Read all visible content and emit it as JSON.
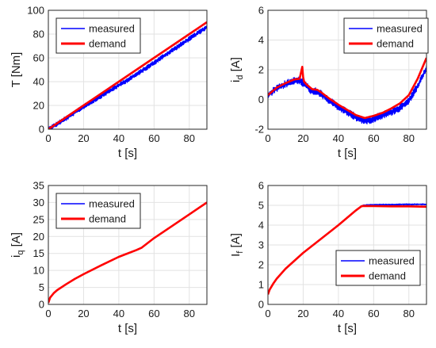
{
  "chart_data": [
    {
      "type": "line",
      "xlabel": "t [s]",
      "ylabel": "T [Nm]",
      "ylabel_sub": "",
      "xlim": [
        0,
        90
      ],
      "ylim": [
        0,
        100
      ],
      "xticks": [
        "0",
        "20",
        "40",
        "60",
        "80"
      ],
      "yticks": [
        "0",
        "20",
        "40",
        "60",
        "80",
        "100"
      ],
      "grid": true,
      "legend_position": "top-left",
      "series": [
        {
          "name": "measured",
          "color": "#0000ff",
          "noise": 2.0,
          "x": [
            0,
            10,
            20,
            30,
            40,
            50,
            60,
            70,
            80,
            90
          ],
          "y": [
            0,
            9,
            19,
            28,
            37,
            46,
            56,
            66,
            76,
            86
          ]
        },
        {
          "name": "demand",
          "color": "#ff0000",
          "noise": 0,
          "x": [
            0,
            10,
            20,
            30,
            40,
            50,
            60,
            70,
            80,
            90
          ],
          "y": [
            0,
            10,
            20,
            30,
            40,
            50,
            60,
            70,
            80,
            90
          ]
        }
      ]
    },
    {
      "type": "line",
      "xlabel": "t [s]",
      "ylabel": "i",
      "ylabel_sub": "d",
      "ylabel_unit": " [A]",
      "xlim": [
        0,
        90
      ],
      "ylim": [
        -2,
        6
      ],
      "xticks": [
        "0",
        "20",
        "40",
        "60",
        "80"
      ],
      "yticks": [
        "-2",
        "0",
        "2",
        "4",
        "6"
      ],
      "grid": true,
      "legend_position": "top-right",
      "series": [
        {
          "name": "measured",
          "color": "#0000ff",
          "noise": 0.25,
          "x": [
            0,
            5,
            10,
            15,
            18,
            20,
            22,
            25,
            28,
            30,
            35,
            40,
            45,
            50,
            55,
            60,
            65,
            70,
            75,
            80,
            85,
            90
          ],
          "y": [
            0.3,
            0.75,
            1.05,
            1.25,
            1.3,
            1.1,
            0.9,
            0.55,
            0.55,
            0.4,
            -0.1,
            -0.5,
            -0.85,
            -1.2,
            -1.45,
            -1.3,
            -1.05,
            -0.85,
            -0.55,
            -0.05,
            0.9,
            2.1
          ]
        },
        {
          "name": "demand",
          "color": "#ff0000",
          "noise": 0,
          "x": [
            0,
            5,
            10,
            15,
            18,
            19.5,
            20,
            20.5,
            22,
            25,
            28,
            30,
            35,
            40,
            45,
            50,
            55,
            60,
            65,
            70,
            75,
            80,
            85,
            90
          ],
          "y": [
            0.3,
            0.8,
            1.1,
            1.35,
            1.4,
            2.2,
            1.5,
            1.2,
            1.0,
            0.7,
            0.65,
            0.5,
            0.05,
            -0.35,
            -0.7,
            -1.05,
            -1.25,
            -1.1,
            -0.9,
            -0.6,
            -0.25,
            0.3,
            1.4,
            2.8
          ]
        }
      ]
    },
    {
      "type": "line",
      "xlabel": "t [s]",
      "ylabel": "i",
      "ylabel_sub": "q",
      "ylabel_unit": " [A]",
      "xlim": [
        0,
        90
      ],
      "ylim": [
        0,
        35
      ],
      "xticks": [
        "0",
        "20",
        "40",
        "60",
        "80"
      ],
      "yticks": [
        "0",
        "5",
        "10",
        "15",
        "20",
        "25",
        "30",
        "35"
      ],
      "grid": true,
      "legend_position": "top-left",
      "series": [
        {
          "name": "measured",
          "color": "#0000ff",
          "noise": 0.15,
          "x": [
            0,
            1,
            3,
            5,
            10,
            15,
            20,
            30,
            40,
            50,
            53,
            60,
            70,
            80,
            90
          ],
          "y": [
            0.5,
            2.0,
            3.3,
            4.2,
            5.9,
            7.5,
            8.9,
            11.5,
            14.0,
            16.0,
            16.7,
            19.5,
            23.0,
            26.5,
            30.0
          ]
        },
        {
          "name": "demand",
          "color": "#ff0000",
          "noise": 0,
          "x": [
            0,
            1,
            3,
            5,
            10,
            15,
            20,
            30,
            40,
            50,
            53,
            60,
            70,
            80,
            90
          ],
          "y": [
            0.5,
            2.0,
            3.3,
            4.2,
            5.9,
            7.5,
            8.9,
            11.5,
            14.0,
            16.0,
            16.7,
            19.5,
            23.0,
            26.5,
            30.0
          ]
        }
      ]
    },
    {
      "type": "line",
      "xlabel": "t [s]",
      "ylabel": "I",
      "ylabel_sub": "f",
      "ylabel_unit": " [A]",
      "xlim": [
        0,
        90
      ],
      "ylim": [
        0,
        6
      ],
      "xticks": [
        "0",
        "20",
        "40",
        "60",
        "80"
      ],
      "yticks": [
        "0",
        "1",
        "2",
        "3",
        "4",
        "5",
        "6"
      ],
      "grid": true,
      "legend_position": "bottom-right",
      "series": [
        {
          "name": "measured",
          "color": "#0000ff",
          "noise": 0.03,
          "x": [
            0,
            1,
            3,
            5,
            10,
            15,
            20,
            30,
            40,
            50,
            53,
            54,
            60,
            70,
            80,
            90
          ],
          "y": [
            0.5,
            0.75,
            1.05,
            1.3,
            1.8,
            2.2,
            2.6,
            3.3,
            4.0,
            4.75,
            4.95,
            5.0,
            5.03,
            5.04,
            5.05,
            5.05
          ]
        },
        {
          "name": "demand",
          "color": "#ff0000",
          "noise": 0,
          "x": [
            0,
            1,
            3,
            5,
            10,
            15,
            20,
            30,
            40,
            50,
            53,
            54,
            60,
            70,
            80,
            90
          ],
          "y": [
            0.5,
            0.75,
            1.05,
            1.3,
            1.8,
            2.2,
            2.6,
            3.3,
            4.0,
            4.75,
            4.95,
            4.97,
            4.96,
            4.95,
            4.95,
            4.93
          ]
        }
      ]
    }
  ]
}
